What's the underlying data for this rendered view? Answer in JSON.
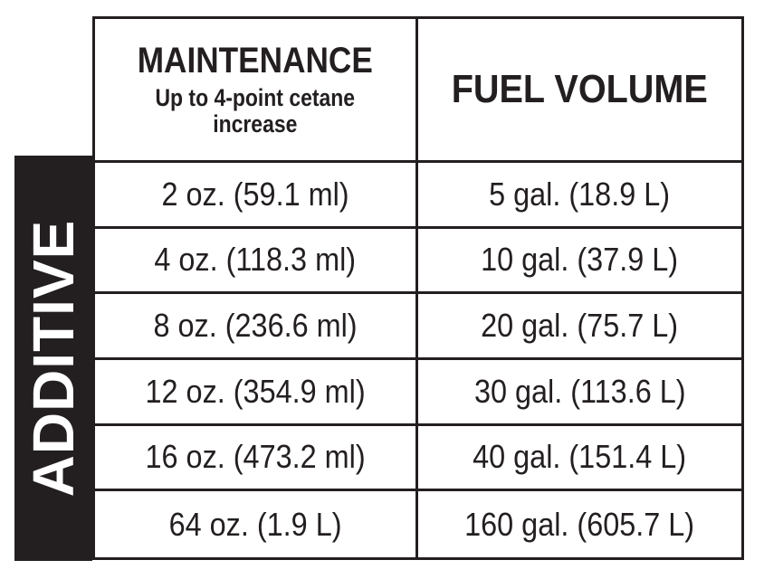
{
  "side_label": "ADDITIVE",
  "header": {
    "maintenance_title": "MAINTENANCE",
    "maintenance_subtitle_line1": "Up to 4-point cetane",
    "maintenance_subtitle_line2": "increase",
    "fuel_volume_title": "FUEL VOLUME"
  },
  "rows": [
    {
      "additive": "2 oz. (59.1 ml)",
      "fuel": "5 gal. (18.9 L)"
    },
    {
      "additive": "4 oz. (118.3 ml)",
      "fuel": "10 gal. (37.9 L)"
    },
    {
      "additive": "8 oz. (236.6 ml)",
      "fuel": "20 gal. (75.7 L)"
    },
    {
      "additive": "12 oz. (354.9 ml)",
      "fuel": "30 gal. (113.6 L)"
    },
    {
      "additive": "16 oz. (473.2 ml)",
      "fuel": "40 gal. (151.4 L)"
    },
    {
      "additive": "64 oz. (1.9 L)",
      "fuel": "160 gal. (605.7 L)"
    }
  ],
  "colors": {
    "ink": "#231f20",
    "background": "#ffffff"
  }
}
